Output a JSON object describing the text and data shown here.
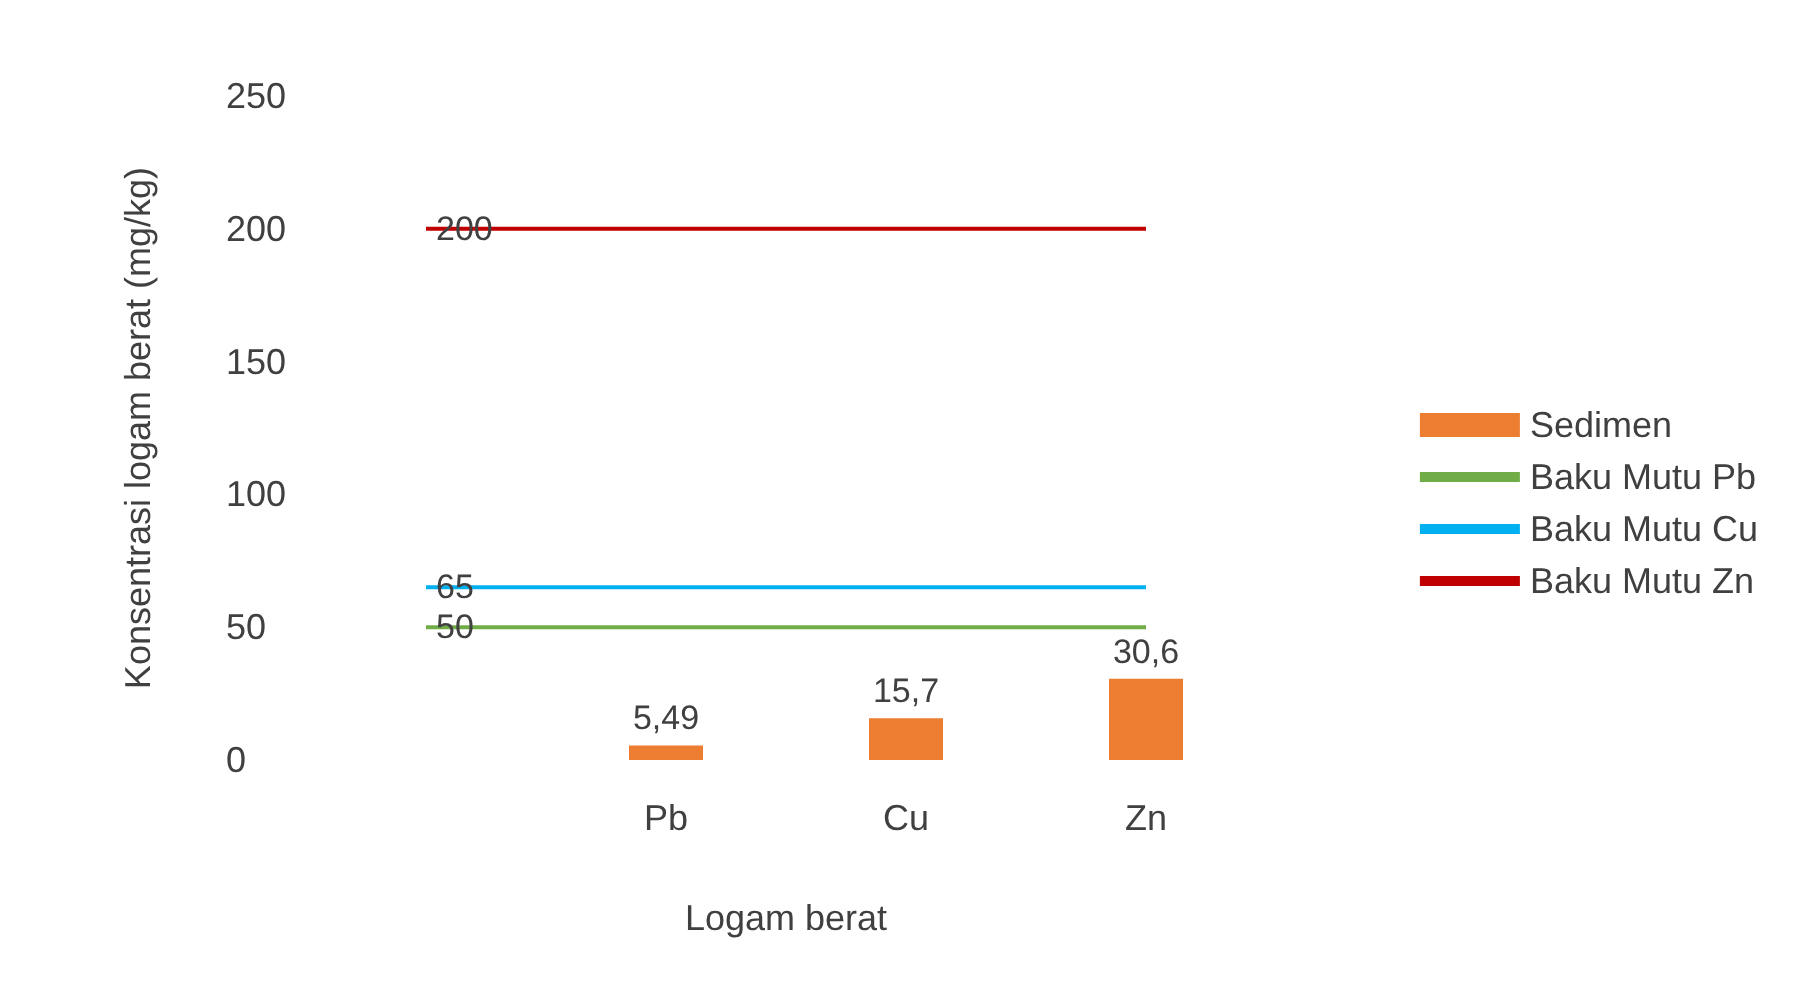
{
  "chart_data": {
    "type": "bar",
    "xlabel": "Logam berat",
    "ylabel": "Konsentrasi logam berat (mg/kg)",
    "categories": [
      null,
      "Pb",
      "Cu",
      "Zn"
    ],
    "series": [
      {
        "name": "Sedimen",
        "color": "#ed7d31",
        "values": [
          null,
          5.49,
          15.7,
          30.6
        ],
        "value_labels": [
          null,
          "5,49",
          "15,7",
          "30,6"
        ]
      },
      {
        "name": "Baku Mutu Pb",
        "type": "line",
        "color": "#70ad47",
        "values": [
          50,
          50,
          50,
          50
        ],
        "value_labels": [
          "50",
          null,
          null,
          null
        ]
      },
      {
        "name": "Baku Mutu Cu",
        "type": "line",
        "color": "#00b0f0",
        "values": [
          65,
          65,
          65,
          65
        ],
        "value_labels": [
          "65",
          null,
          null,
          null
        ]
      },
      {
        "name": "Baku Mutu Zn",
        "type": "line",
        "color": "#c00000",
        "values": [
          200,
          200,
          200,
          200
        ],
        "value_labels": [
          "200",
          null,
          null,
          null
        ]
      }
    ],
    "ylim": [
      0,
      250
    ],
    "yticks": [
      0,
      50,
      100,
      150,
      200,
      250
    ],
    "grid": false,
    "legend": "right",
    "marker": "none",
    "line_style": "solid"
  }
}
